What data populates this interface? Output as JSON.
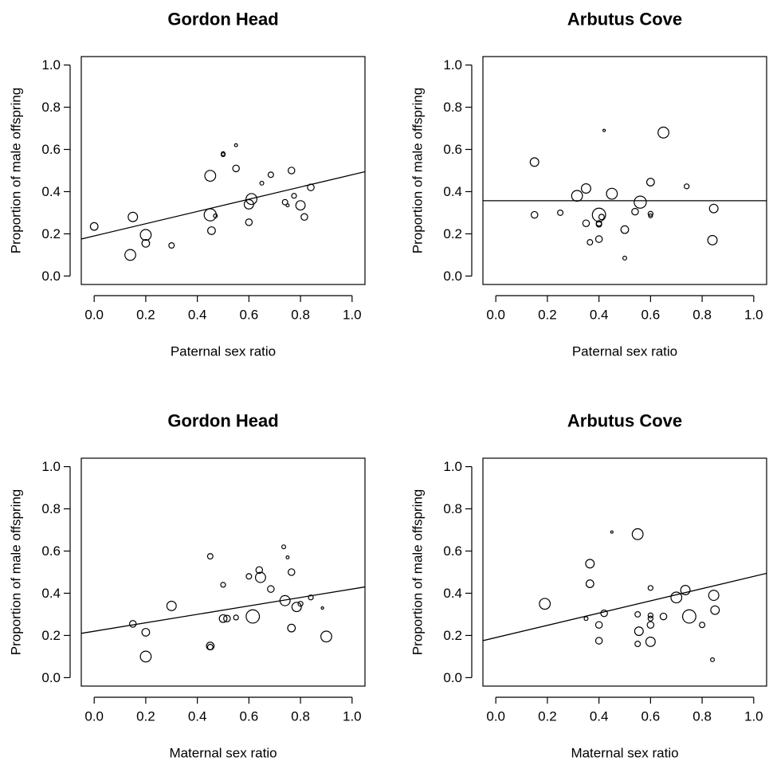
{
  "chart_data": [
    {
      "type": "scatter",
      "title": "Gordon Head",
      "xlabel": "Paternal sex ratio",
      "ylabel": "Proportion of male offspring",
      "xlim": [
        -0.05,
        1.05
      ],
      "ylim": [
        -0.04,
        1.04
      ],
      "xticks": [
        "0.0",
        "0.2",
        "0.4",
        "0.6",
        "0.8",
        "1.0"
      ],
      "yticks": [
        "0.0",
        "0.2",
        "0.4",
        "0.6",
        "0.8",
        "1.0"
      ],
      "grid": false,
      "fit_line": {
        "intercept": 0.19,
        "slope": 0.29
      },
      "points": [
        {
          "x": 0.0,
          "y": 0.235,
          "size": 2
        },
        {
          "x": 0.14,
          "y": 0.1,
          "size": 4
        },
        {
          "x": 0.15,
          "y": 0.28,
          "size": 3
        },
        {
          "x": 0.2,
          "y": 0.195,
          "size": 4
        },
        {
          "x": 0.2,
          "y": 0.155,
          "size": 2
        },
        {
          "x": 0.3,
          "y": 0.145,
          "size": 1
        },
        {
          "x": 0.45,
          "y": 0.29,
          "size": 5
        },
        {
          "x": 0.45,
          "y": 0.475,
          "size": 4
        },
        {
          "x": 0.455,
          "y": 0.215,
          "size": 2
        },
        {
          "x": 0.47,
          "y": 0.285,
          "size": 0.5
        },
        {
          "x": 0.5,
          "y": 0.58,
          "size": 0.5
        },
        {
          "x": 0.5,
          "y": 0.575,
          "size": 0.5
        },
        {
          "x": 0.55,
          "y": 0.62,
          "size": 0.3
        },
        {
          "x": 0.55,
          "y": 0.51,
          "size": 1.5
        },
        {
          "x": 0.6,
          "y": 0.255,
          "size": 1.5
        },
        {
          "x": 0.6,
          "y": 0.34,
          "size": 3
        },
        {
          "x": 0.61,
          "y": 0.365,
          "size": 4
        },
        {
          "x": 0.65,
          "y": 0.44,
          "size": 0.5
        },
        {
          "x": 0.685,
          "y": 0.48,
          "size": 1
        },
        {
          "x": 0.74,
          "y": 0.35,
          "size": 1
        },
        {
          "x": 0.75,
          "y": 0.335,
          "size": 0.3
        },
        {
          "x": 0.765,
          "y": 0.5,
          "size": 1.5
        },
        {
          "x": 0.775,
          "y": 0.38,
          "size": 0.8
        },
        {
          "x": 0.8,
          "y": 0.335,
          "size": 3
        },
        {
          "x": 0.815,
          "y": 0.28,
          "size": 1.5
        },
        {
          "x": 0.84,
          "y": 0.42,
          "size": 1.5
        }
      ]
    },
    {
      "type": "scatter",
      "title": "Arbutus Cove",
      "xlabel": "Paternal sex ratio",
      "ylabel": "Proportion of male offspring",
      "xlim": [
        -0.05,
        1.05
      ],
      "ylim": [
        -0.04,
        1.04
      ],
      "xticks": [
        "0.0",
        "0.2",
        "0.4",
        "0.6",
        "0.8",
        "1.0"
      ],
      "yticks": [
        "0.0",
        "0.2",
        "0.4",
        "0.6",
        "0.8",
        "1.0"
      ],
      "grid": false,
      "fit_line": {
        "intercept": 0.357,
        "slope": 0.0
      },
      "points": [
        {
          "x": 0.15,
          "y": 0.54,
          "size": 2.5
        },
        {
          "x": 0.15,
          "y": 0.29,
          "size": 1.5
        },
        {
          "x": 0.25,
          "y": 0.3,
          "size": 1
        },
        {
          "x": 0.315,
          "y": 0.38,
          "size": 4
        },
        {
          "x": 0.35,
          "y": 0.25,
          "size": 1.5
        },
        {
          "x": 0.35,
          "y": 0.415,
          "size": 3
        },
        {
          "x": 0.365,
          "y": 0.16,
          "size": 1
        },
        {
          "x": 0.4,
          "y": 0.29,
          "size": 6
        },
        {
          "x": 0.4,
          "y": 0.25,
          "size": 1
        },
        {
          "x": 0.4,
          "y": 0.245,
          "size": 1
        },
        {
          "x": 0.4,
          "y": 0.175,
          "size": 1.5
        },
        {
          "x": 0.41,
          "y": 0.28,
          "size": 1
        },
        {
          "x": 0.42,
          "y": 0.69,
          "size": 0.2
        },
        {
          "x": 0.45,
          "y": 0.39,
          "size": 4
        },
        {
          "x": 0.5,
          "y": 0.22,
          "size": 2
        },
        {
          "x": 0.5,
          "y": 0.085,
          "size": 0.5
        },
        {
          "x": 0.54,
          "y": 0.305,
          "size": 1.5
        },
        {
          "x": 0.56,
          "y": 0.35,
          "size": 5
        },
        {
          "x": 0.6,
          "y": 0.445,
          "size": 2
        },
        {
          "x": 0.6,
          "y": 0.295,
          "size": 0.8
        },
        {
          "x": 0.6,
          "y": 0.285,
          "size": 0.5
        },
        {
          "x": 0.65,
          "y": 0.68,
          "size": 4
        },
        {
          "x": 0.74,
          "y": 0.425,
          "size": 0.8
        },
        {
          "x": 0.84,
          "y": 0.17,
          "size": 3
        },
        {
          "x": 0.845,
          "y": 0.32,
          "size": 2.5
        }
      ]
    },
    {
      "type": "scatter",
      "title": "Gordon Head",
      "xlabel": "Maternal sex ratio",
      "ylabel": "Proportion of male offspring",
      "xlim": [
        -0.05,
        1.05
      ],
      "ylim": [
        -0.04,
        1.04
      ],
      "xticks": [
        "0.0",
        "0.2",
        "0.4",
        "0.6",
        "0.8",
        "1.0"
      ],
      "yticks": [
        "0.0",
        "0.2",
        "0.4",
        "0.6",
        "0.8",
        "1.0"
      ],
      "grid": false,
      "fit_line": {
        "intercept": 0.22,
        "slope": 0.2
      },
      "points": [
        {
          "x": 0.15,
          "y": 0.255,
          "size": 1.5
        },
        {
          "x": 0.2,
          "y": 0.215,
          "size": 2
        },
        {
          "x": 0.2,
          "y": 0.1,
          "size": 4
        },
        {
          "x": 0.3,
          "y": 0.34,
          "size": 3
        },
        {
          "x": 0.45,
          "y": 0.575,
          "size": 1
        },
        {
          "x": 0.45,
          "y": 0.15,
          "size": 2
        },
        {
          "x": 0.45,
          "y": 0.145,
          "size": 1
        },
        {
          "x": 0.5,
          "y": 0.44,
          "size": 0.8
        },
        {
          "x": 0.5,
          "y": 0.28,
          "size": 2
        },
        {
          "x": 0.515,
          "y": 0.28,
          "size": 1.5
        },
        {
          "x": 0.55,
          "y": 0.285,
          "size": 0.8
        },
        {
          "x": 0.6,
          "y": 0.48,
          "size": 1
        },
        {
          "x": 0.615,
          "y": 0.29,
          "size": 6
        },
        {
          "x": 0.64,
          "y": 0.51,
          "size": 1.5
        },
        {
          "x": 0.645,
          "y": 0.475,
          "size": 3.5
        },
        {
          "x": 0.685,
          "y": 0.42,
          "size": 1.5
        },
        {
          "x": 0.735,
          "y": 0.62,
          "size": 0.5
        },
        {
          "x": 0.74,
          "y": 0.365,
          "size": 3.5
        },
        {
          "x": 0.75,
          "y": 0.57,
          "size": 0.3
        },
        {
          "x": 0.765,
          "y": 0.5,
          "size": 1.5
        },
        {
          "x": 0.765,
          "y": 0.235,
          "size": 2
        },
        {
          "x": 0.785,
          "y": 0.335,
          "size": 3
        },
        {
          "x": 0.8,
          "y": 0.35,
          "size": 0.8
        },
        {
          "x": 0.84,
          "y": 0.38,
          "size": 0.8
        },
        {
          "x": 0.885,
          "y": 0.33,
          "size": 0.2
        },
        {
          "x": 0.9,
          "y": 0.195,
          "size": 4
        }
      ]
    },
    {
      "type": "scatter",
      "title": "Arbutus Cove",
      "xlabel": "Maternal sex ratio",
      "ylabel": "Proportion of male offspring",
      "xlim": [
        -0.05,
        1.05
      ],
      "ylim": [
        -0.04,
        1.04
      ],
      "xticks": [
        "0.0",
        "0.2",
        "0.4",
        "0.6",
        "0.8",
        "1.0"
      ],
      "yticks": [
        "0.0",
        "0.2",
        "0.4",
        "0.6",
        "0.8",
        "1.0"
      ],
      "grid": false,
      "fit_line": {
        "intercept": 0.19,
        "slope": 0.29
      },
      "points": [
        {
          "x": 0.19,
          "y": 0.35,
          "size": 4
        },
        {
          "x": 0.35,
          "y": 0.28,
          "size": 0.5
        },
        {
          "x": 0.365,
          "y": 0.54,
          "size": 2.5
        },
        {
          "x": 0.365,
          "y": 0.445,
          "size": 2
        },
        {
          "x": 0.4,
          "y": 0.25,
          "size": 1.5
        },
        {
          "x": 0.4,
          "y": 0.175,
          "size": 1.5
        },
        {
          "x": 0.42,
          "y": 0.305,
          "size": 1.5
        },
        {
          "x": 0.45,
          "y": 0.69,
          "size": 0.2
        },
        {
          "x": 0.55,
          "y": 0.68,
          "size": 4
        },
        {
          "x": 0.55,
          "y": 0.3,
          "size": 1
        },
        {
          "x": 0.55,
          "y": 0.16,
          "size": 1
        },
        {
          "x": 0.555,
          "y": 0.22,
          "size": 2.5
        },
        {
          "x": 0.6,
          "y": 0.425,
          "size": 0.8
        },
        {
          "x": 0.6,
          "y": 0.295,
          "size": 0.8
        },
        {
          "x": 0.6,
          "y": 0.28,
          "size": 0.8
        },
        {
          "x": 0.6,
          "y": 0.25,
          "size": 1.5
        },
        {
          "x": 0.6,
          "y": 0.17,
          "size": 3
        },
        {
          "x": 0.65,
          "y": 0.29,
          "size": 1.5
        },
        {
          "x": 0.7,
          "y": 0.38,
          "size": 4
        },
        {
          "x": 0.735,
          "y": 0.415,
          "size": 3
        },
        {
          "x": 0.75,
          "y": 0.29,
          "size": 6
        },
        {
          "x": 0.8,
          "y": 0.25,
          "size": 1
        },
        {
          "x": 0.84,
          "y": 0.085,
          "size": 0.5
        },
        {
          "x": 0.845,
          "y": 0.39,
          "size": 3.5
        },
        {
          "x": 0.85,
          "y": 0.32,
          "size": 2.5
        }
      ]
    }
  ]
}
